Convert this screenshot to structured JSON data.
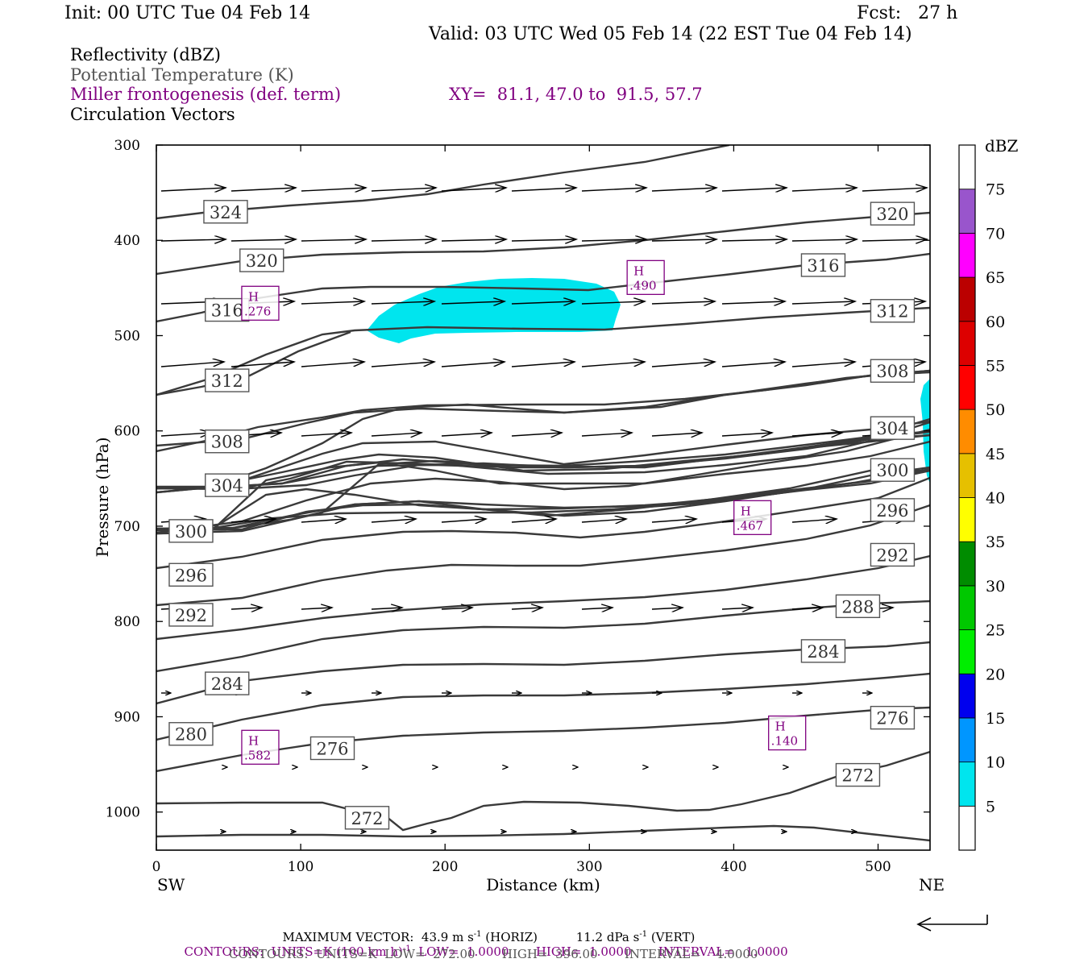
{
  "header": {
    "init": "Init: 00 UTC Tue 04 Feb 14",
    "fcst": "Fcst:   27 h",
    "valid": "Valid: 03 UTC Wed 05 Feb 14 (22 EST Tue 04 Feb 14)"
  },
  "legend_lines": {
    "reflectivity": "Reflectivity (dBZ)",
    "theta": "Potential Temperature (K)",
    "frontogenesis": "Miller frontogenesis (def. term)",
    "xy": "XY=  81.1, 47.0 to  91.5, 57.7",
    "vectors": "Circulation Vectors"
  },
  "colors": {
    "contour": "#3a3a3a",
    "label_purple": "#800080",
    "reflectivity_fill": "#00e5ee"
  },
  "chart_data": {
    "type": "cross-section contour",
    "xlabel": "Distance (km)",
    "ylabel": "Pressure (hPa)",
    "x_ticks": [
      0,
      100,
      200,
      300,
      400,
      500
    ],
    "y_ticks": [
      300,
      400,
      500,
      600,
      700,
      800,
      900,
      1000
    ],
    "xlim": [
      0,
      536
    ],
    "ylim": [
      300,
      1040
    ],
    "left_endpoint": "SW",
    "right_endpoint": "NE",
    "theta_labels": [
      {
        "text": "324",
        "x": 48,
        "p": 370
      },
      {
        "text": "320",
        "x": 73,
        "p": 421
      },
      {
        "text": "316",
        "x": 49,
        "p": 473
      },
      {
        "text": "312",
        "x": 49,
        "p": 547
      },
      {
        "text": "308",
        "x": 49,
        "p": 611
      },
      {
        "text": "304",
        "x": 49,
        "p": 657
      },
      {
        "text": "300",
        "x": 24,
        "p": 705
      },
      {
        "text": "296",
        "x": 24,
        "p": 751
      },
      {
        "text": "292",
        "x": 24,
        "p": 793
      },
      {
        "text": "284",
        "x": 49,
        "p": 865
      },
      {
        "text": "280",
        "x": 24,
        "p": 918
      },
      {
        "text": "276",
        "x": 122,
        "p": 933
      },
      {
        "text": "272",
        "x": 146,
        "p": 1006
      },
      {
        "text": "320",
        "x": 510,
        "p": 372
      },
      {
        "text": "316",
        "x": 462,
        "p": 426
      },
      {
        "text": "312",
        "x": 510,
        "p": 474
      },
      {
        "text": "308",
        "x": 510,
        "p": 537
      },
      {
        "text": "304",
        "x": 510,
        "p": 597
      },
      {
        "text": "300",
        "x": 510,
        "p": 641
      },
      {
        "text": "296",
        "x": 510,
        "p": 683
      },
      {
        "text": "292",
        "x": 510,
        "p": 730
      },
      {
        "text": "288",
        "x": 486,
        "p": 784
      },
      {
        "text": "284",
        "x": 462,
        "p": 831
      },
      {
        "text": "276",
        "x": 510,
        "p": 901
      },
      {
        "text": "272",
        "x": 486,
        "p": 961
      }
    ],
    "frontogenesis_maxima": [
      {
        "label": "H",
        "value": ".276",
        "x": 72,
        "p": 466
      },
      {
        "label": "H",
        "value": ".490",
        "x": 339,
        "p": 439
      },
      {
        "label": "H",
        "value": ".467",
        "x": 413,
        "p": 691
      },
      {
        "label": "H",
        "value": ".582",
        "x": 72,
        "p": 932
      },
      {
        "label": "H",
        "value": ".140",
        "x": 437,
        "p": 917
      }
    ],
    "colorbar": {
      "unit": "dBZ",
      "levels": [
        5,
        10,
        15,
        20,
        25,
        30,
        35,
        40,
        45,
        50,
        55,
        60,
        65,
        70,
        75
      ],
      "colors": [
        "#ffffff",
        "#00e5ee",
        "#0096ff",
        "#0000ee",
        "#00ee00",
        "#00c800",
        "#008c00",
        "#ffff00",
        "#e6c000",
        "#ff8c00",
        "#ff0000",
        "#dd0000",
        "#bb0000",
        "#ff00ff",
        "#9955cc",
        "#ffffff"
      ]
    }
  },
  "footer": {
    "max_vector": "MAXIMUM VECTOR:  43.9 m s",
    "max_vector_exp": "-1",
    "max_vector_mid": " (HORIZ)          11.2 dPa s",
    "max_vector_exp2": "-1",
    "max_vector_end": " (VERT)",
    "contours1_pre": "CONTOURS:  UNITS=K (100 km h)",
    "contours1_exp": "-1",
    "contours1_post": "  LOW=  1.0000       HIGH=  1.0000       INTERVAL=   1.0000",
    "contours2": "CONTOURS:  UNITS=K  LOW=  272.00       HIGH=  396.00       INTERVAL=    4.0000"
  }
}
